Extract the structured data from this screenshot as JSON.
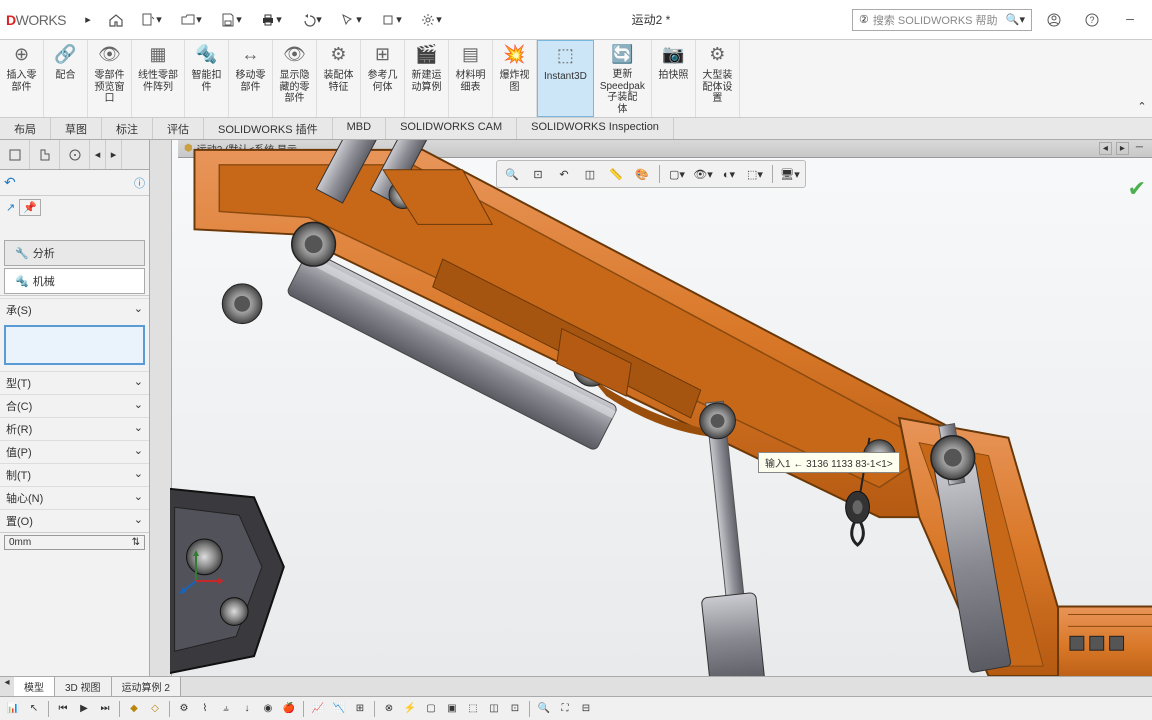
{
  "app": {
    "logo_d": "D",
    "logo_works": "WORKS",
    "title": "运动2 *"
  },
  "search": {
    "placeholder": "搜索 SOLIDWORKS 帮助"
  },
  "ribbon": [
    {
      "label": "插入零\n部件"
    },
    {
      "label": "配合"
    },
    {
      "label": "零部件\n预览窗\n口"
    },
    {
      "label": "线性零部\n件阵列"
    },
    {
      "label": "智能扣\n件"
    },
    {
      "label": "移动零\n部件"
    },
    {
      "label": "显示隐\n藏的零\n部件"
    },
    {
      "label": "装配体\n特征"
    },
    {
      "label": "参考几\n何体"
    },
    {
      "label": "新建运\n动算例"
    },
    {
      "label": "材料明\n细表"
    },
    {
      "label": "爆炸视\n图"
    },
    {
      "label": "Instant3D",
      "hl": true
    },
    {
      "label": "更新\nSpeedpak\n子装配\n体"
    },
    {
      "label": "拍快照"
    },
    {
      "label": "大型装\n配体设\n置"
    }
  ],
  "tabs": [
    "布局",
    "草图",
    "标注",
    "评估",
    "SOLIDWORKS 插件",
    "MBD",
    "SOLIDWORKS CAM",
    "SOLIDWORKS Inspection"
  ],
  "side_tabs": {
    "analysis": "分析",
    "mechanical": "机械"
  },
  "panel": {
    "bearing_label": "承(S)",
    "props": [
      "型(T)",
      "合(C)",
      "析(R)",
      "值(P)",
      "制(T)",
      "轴心(N)",
      "置(O)"
    ],
    "spinner_value": "0mm"
  },
  "viewport": {
    "header": "运动2  (默认<系统 显示...",
    "tooltip": "输入1 ← 3136 1133 83-1<1>"
  },
  "bottom_tabs": [
    "模型",
    "3D 视图",
    "运动算例 2"
  ],
  "colors": {
    "arm_orange": "#d97828",
    "arm_orange_dark": "#b85f18",
    "steel": "#888890",
    "steel_light": "#b0b0b8",
    "steel_dark": "#555560"
  }
}
